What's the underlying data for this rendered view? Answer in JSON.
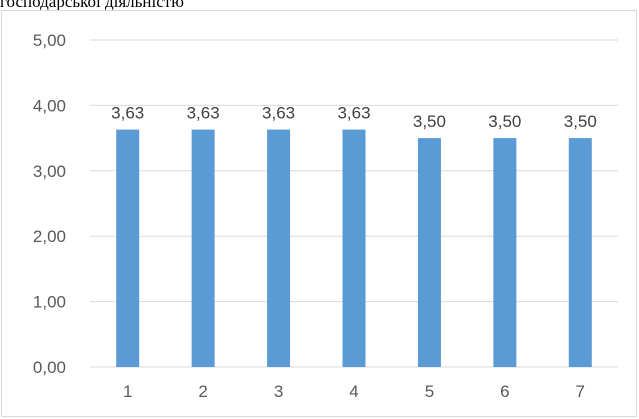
{
  "page": {
    "caption": "господарської діяльністю"
  },
  "chart_data": {
    "type": "bar",
    "title": "",
    "xlabel": "",
    "ylabel": "",
    "categories": [
      "1",
      "2",
      "3",
      "4",
      "5",
      "6",
      "7"
    ],
    "values": [
      3.63,
      3.63,
      3.63,
      3.63,
      3.5,
      3.5,
      3.5
    ],
    "data_labels": [
      "3,63",
      "3,63",
      "3,63",
      "3,63",
      "3,50",
      "3,50",
      "3,50"
    ],
    "ylim": [
      0,
      5
    ],
    "y_ticks": [
      0,
      1,
      2,
      3,
      4,
      5
    ],
    "y_tick_labels": [
      "0,00",
      "1,00",
      "2,00",
      "3,00",
      "4,00",
      "5,00"
    ],
    "grid": true,
    "legend": "none",
    "bar_color": "#5b9bd5",
    "grid_color": "#d9d9d9"
  }
}
